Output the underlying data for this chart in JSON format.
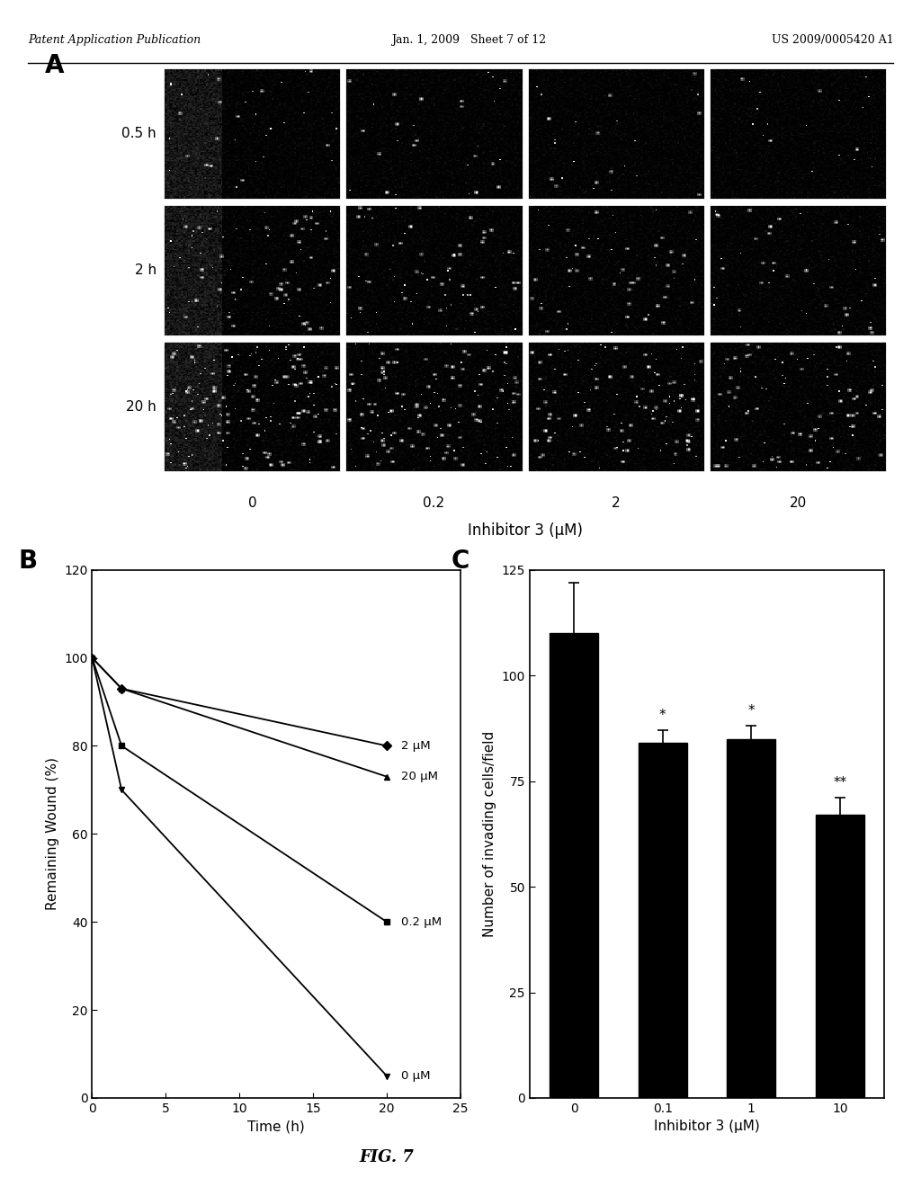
{
  "header_left": "Patent Application Publication",
  "header_center": "Jan. 1, 2009   Sheet 7 of 12",
  "header_right": "US 2009/0005420 A1",
  "figure_label": "FIG. 7",
  "panel_A": {
    "label": "A",
    "row_labels": [
      "0.5 h",
      "2 h",
      "20 h"
    ],
    "col_labels": [
      "0",
      "0.2",
      "2",
      "20"
    ],
    "xlabel": "Inhibitor 3 (μM)"
  },
  "panel_B": {
    "label": "B",
    "xlabel": "Time (h)",
    "ylabel": "Remaining Wound (%)",
    "xlim": [
      0,
      25
    ],
    "ylim": [
      0,
      120
    ],
    "xticks": [
      0,
      5,
      10,
      15,
      20,
      25
    ],
    "yticks": [
      0,
      20,
      40,
      60,
      80,
      100,
      120
    ],
    "series": [
      {
        "label": "2 μM",
        "x": [
          0,
          2,
          20
        ],
        "y": [
          100,
          93,
          80
        ],
        "marker": "D",
        "color": "black",
        "linestyle": "-"
      },
      {
        "label": "20 μM",
        "x": [
          0,
          2,
          20
        ],
        "y": [
          100,
          93,
          73
        ],
        "marker": "^",
        "color": "black",
        "linestyle": "-"
      },
      {
        "label": "0.2 μM",
        "x": [
          0,
          2,
          20
        ],
        "y": [
          100,
          80,
          40
        ],
        "marker": "s",
        "color": "black",
        "linestyle": "-"
      },
      {
        "label": "0 μM",
        "x": [
          0,
          2,
          20
        ],
        "y": [
          100,
          70,
          5
        ],
        "marker": "v",
        "color": "black",
        "linestyle": "-"
      }
    ],
    "label_positions": {
      "2 μM": [
        21,
        80
      ],
      "20 μM": [
        21,
        73
      ],
      "0.2 μM": [
        21,
        40
      ],
      "0 μM": [
        21,
        5
      ]
    }
  },
  "panel_C": {
    "label": "C",
    "xlabel": "Inhibitor 3 (μM)",
    "ylabel": "Number of invading cells/field",
    "xlim_cat": [
      "0",
      "0.1",
      "1",
      "10"
    ],
    "ylim": [
      0,
      125
    ],
    "yticks": [
      0,
      25,
      50,
      75,
      100,
      125
    ],
    "bars": [
      {
        "x": "0",
        "y": 110,
        "yerr": 12,
        "color": "black",
        "annotation": ""
      },
      {
        "x": "0.1",
        "y": 84,
        "yerr": 3,
        "color": "black",
        "annotation": "*"
      },
      {
        "x": "1",
        "y": 85,
        "yerr": 3,
        "color": "black",
        "annotation": "*"
      },
      {
        "x": "10",
        "y": 67,
        "yerr": 4,
        "color": "black",
        "annotation": "**"
      }
    ]
  },
  "background_color": "white",
  "text_color": "black"
}
